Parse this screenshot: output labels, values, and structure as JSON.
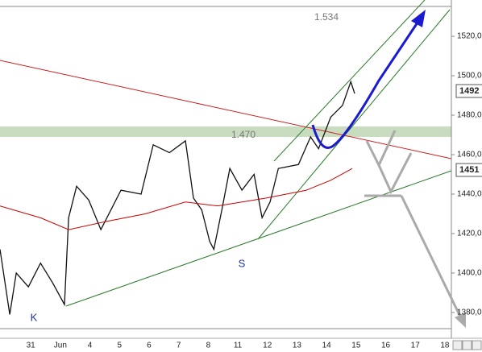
{
  "chart_data": {
    "type": "line",
    "categories": [
      "31",
      "Jun",
      "4",
      "5",
      "6",
      "7",
      "8",
      "11",
      "12",
      "13",
      "14",
      "15",
      "16",
      "17",
      "18"
    ],
    "xlim": [
      -1.04,
      14.22
    ],
    "ylim": [
      1366.9,
      1538.4
    ],
    "yticks": [
      {
        "value": 1380,
        "label": "1380,000"
      },
      {
        "value": 1400,
        "label": "1400,000"
      },
      {
        "value": 1420,
        "label": "1420,000"
      },
      {
        "value": 1440,
        "label": "1440,000"
      },
      {
        "value": 1460,
        "label": "1460,000"
      },
      {
        "value": 1480,
        "label": "1480,000"
      },
      {
        "value": 1500,
        "label": "1500,000"
      },
      {
        "value": 1520,
        "label": "1520,000"
      }
    ],
    "series": [
      {
        "color": "#111111",
        "x": [
          -1.04,
          -0.71,
          -0.49,
          -0.08,
          0.33,
          0.74,
          1.14,
          1.28,
          1.55,
          1.96,
          2.37,
          3.05,
          3.73,
          4.14,
          4.69,
          5.23,
          5.5,
          5.78,
          6.05,
          6.19,
          6.46,
          6.73,
          7.14,
          7.55,
          7.82,
          8.09,
          8.37,
          9.05,
          9.46,
          9.73,
          10.14,
          10.54,
          10.82,
          10.95
        ],
        "values": [
          1412,
          1379,
          1400,
          1393,
          1405,
          1395,
          1384,
          1428,
          1444,
          1437,
          1422,
          1442,
          1440,
          1465,
          1461,
          1467,
          1438,
          1432,
          1416,
          1412,
          1432,
          1453,
          1442,
          1450,
          1428,
          1436,
          1453,
          1455,
          1469,
          1463,
          1479,
          1485,
          1497,
          1491
        ]
      },
      {
        "color": "#cc0000",
        "x": [
          -1.04,
          0.33,
          1.28,
          2.51,
          3.87,
          5.23,
          6.32,
          7.96,
          9.32,
          10.14,
          10.87
        ],
        "values": [
          1434,
          1428,
          1422,
          1426,
          1430,
          1436,
          1434,
          1438,
          1442,
          1447,
          1453
        ]
      }
    ],
    "annotations": [
      "1.534",
      "1.470",
      "S",
      "K"
    ],
    "price_labels": [
      "1492",
      "1451"
    ]
  }
}
